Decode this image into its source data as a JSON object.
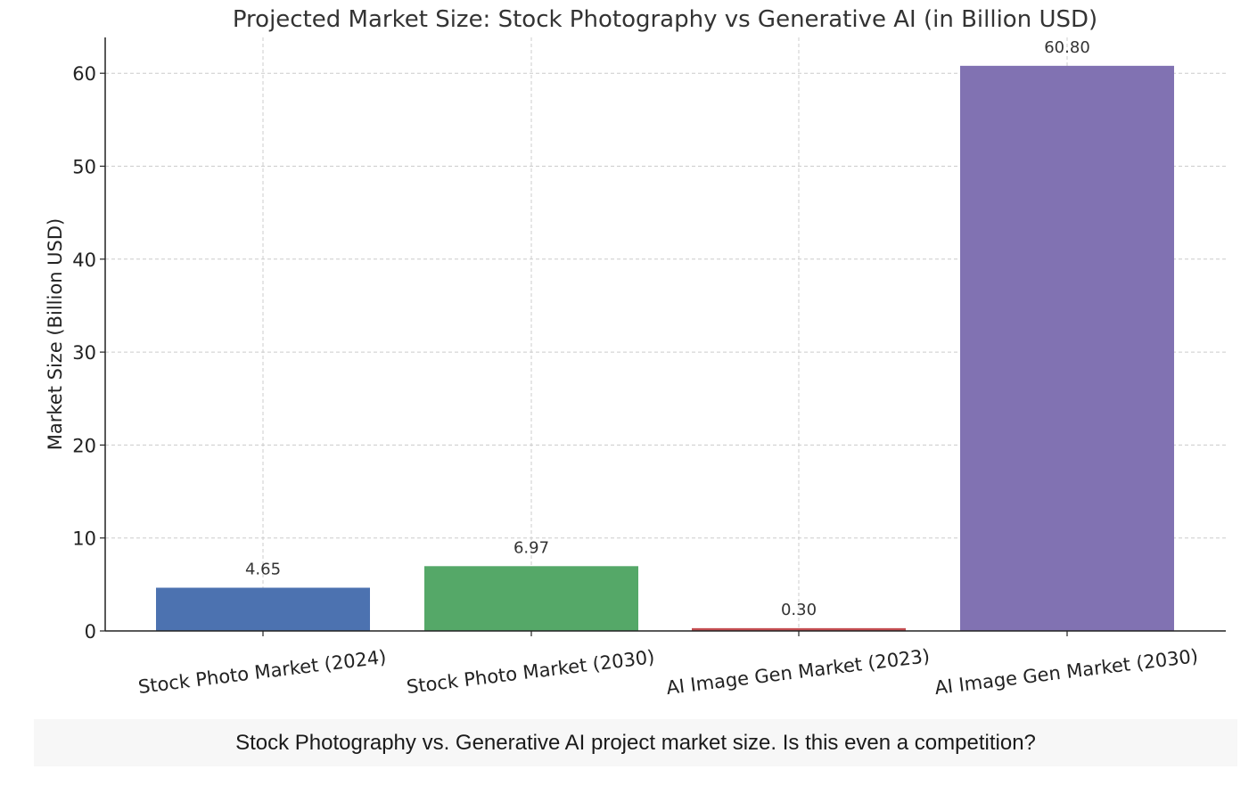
{
  "chart_data": {
    "type": "bar",
    "title": "Projected Market Size: Stock Photography vs Generative AI (in Billion USD)",
    "xlabel": "",
    "ylabel": "Market Size (Billion USD)",
    "categories": [
      "Stock Photo Market (2024)",
      "Stock Photo Market (2030)",
      "AI Image Gen Market (2023)",
      "AI Image Gen Market (2030)"
    ],
    "values": [
      4.65,
      6.97,
      0.3,
      60.8
    ],
    "value_labels": [
      "4.65",
      "6.97",
      "0.30",
      "60.80"
    ],
    "colors": [
      "#4c72b0",
      "#55a868",
      "#c44e52",
      "#8172b2"
    ],
    "ylim": [
      0,
      64
    ],
    "yticks": [
      0,
      10,
      20,
      30,
      40,
      50,
      60
    ],
    "grid": true,
    "legend": "none"
  },
  "caption": {
    "text": "Stock Photography vs. Generative AI project market size. Is this even a competition?"
  }
}
